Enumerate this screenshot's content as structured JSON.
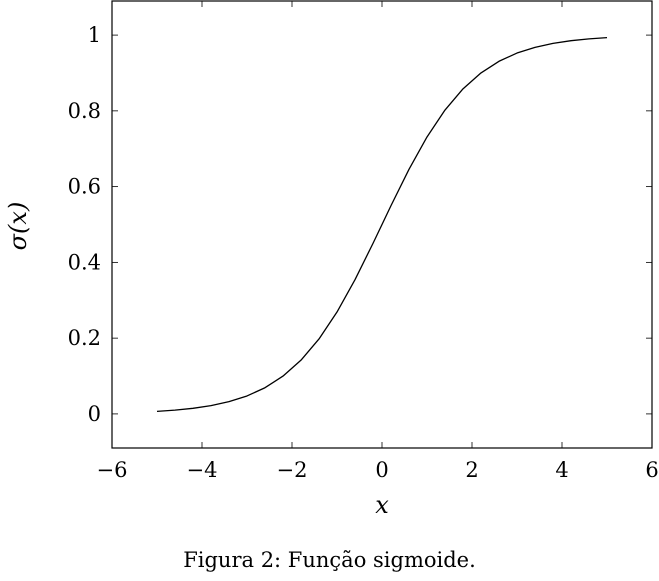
{
  "caption": "Figura 2: Função sigmoide.",
  "chart_data": {
    "type": "line",
    "xlabel": "x",
    "ylabel": "σ(x)",
    "xlim": [
      -6,
      6
    ],
    "ylim": [
      -0.09,
      1.09
    ],
    "x_ticks": [
      -6,
      -4,
      -2,
      0,
      2,
      4,
      6
    ],
    "x_tick_labels": [
      "−6",
      "−4",
      "−2",
      "0",
      "2",
      "4",
      "6"
    ],
    "y_ticks": [
      0,
      0.2,
      0.4,
      0.6,
      0.8,
      1
    ],
    "y_tick_labels": [
      "0",
      "0.2",
      "0.4",
      "0.6",
      "0.8",
      "1"
    ],
    "grid": false,
    "series": [
      {
        "x": [
          -5,
          -4.6,
          -4.2,
          -3.8,
          -3.4,
          -3,
          -2.6,
          -2.2,
          -1.8,
          -1.4,
          -1,
          -0.6,
          -0.2,
          0.2,
          0.6,
          1,
          1.4,
          1.8,
          2.2,
          2.6,
          3,
          3.4,
          3.8,
          4.2,
          4.6,
          5
        ],
        "y": [
          0.0067,
          0.0099,
          0.0148,
          0.0219,
          0.0323,
          0.0474,
          0.0691,
          0.0998,
          0.1419,
          0.1978,
          0.2689,
          0.3543,
          0.4502,
          0.5498,
          0.6457,
          0.7311,
          0.8022,
          0.8581,
          0.9002,
          0.9309,
          0.9526,
          0.9677,
          0.9781,
          0.9852,
          0.9901,
          0.9933
        ]
      }
    ]
  }
}
